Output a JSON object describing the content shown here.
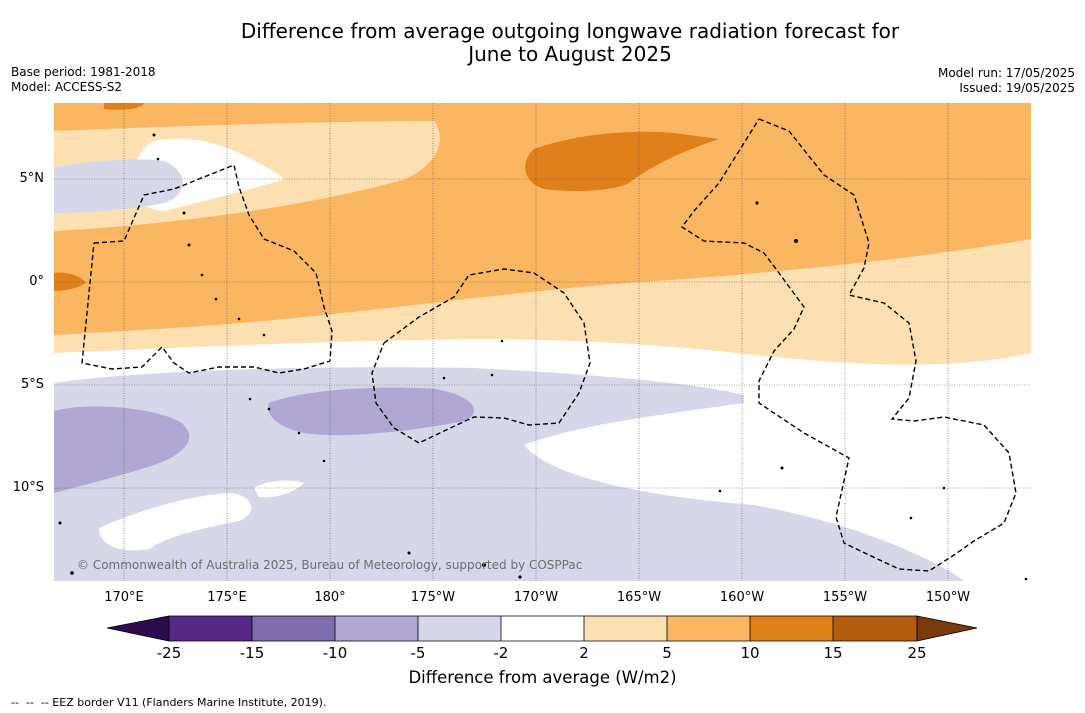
{
  "title": "Difference from average outgoing longwave radiation forecast for\nJune to August 2025",
  "meta_left": {
    "base_period": "Base period: 1981-2018",
    "model": "Model: ACCESS-S2"
  },
  "meta_right": {
    "model_run": "Model run: 17/05/2025",
    "issued": "Issued: 19/05/2025"
  },
  "map": {
    "longitude_labels": [
      "170°E",
      "175°E",
      "180°",
      "175°W",
      "170°W",
      "165°W",
      "160°W",
      "155°W",
      "150°W"
    ],
    "latitude_labels": [
      "5°N",
      "0°",
      "5°S",
      "10°S"
    ],
    "copyright": "© Commonwealth of Australia 2025, Bureau of Meteorology, supported by COSPPac",
    "colors": {
      "wet_strong": "#b0a8d2",
      "wet_weak": "#d7d7ea",
      "neutral": "#ffffff",
      "dry_weak": "#fde0b2",
      "dry_mid": "#fbb662",
      "dry_strong": "#e0801a"
    }
  },
  "colorbar": {
    "title": "Difference from average (W/m2)",
    "tick_labels": [
      "-25",
      "-15",
      "-10",
      "-5",
      "-2",
      "2",
      "5",
      "10",
      "15",
      "25"
    ],
    "colors": [
      "#2e0a4f",
      "#562885",
      "#7f6ead",
      "#b0a8d2",
      "#d7d7ea",
      "#ffffff",
      "#fde0b2",
      "#fbb662",
      "#e0801a",
      "#b35d0d",
      "#7a3b0a"
    ]
  },
  "footnote": "--  --  -- EEZ border V11 (Flanders Marine Institute, 2019)."
}
